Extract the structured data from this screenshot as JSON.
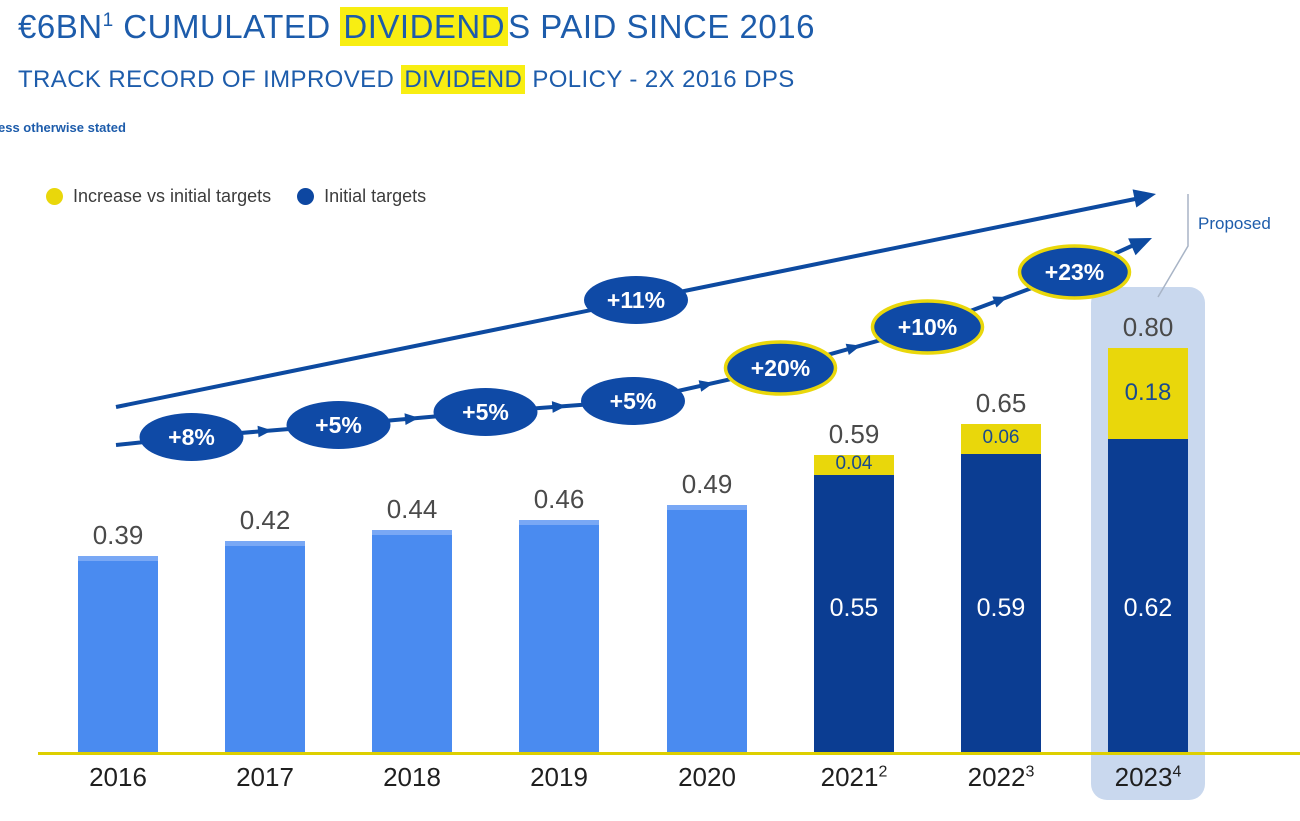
{
  "slide": {
    "title_segments": [
      {
        "text": "€6BN",
        "sup": "1",
        "highlight": false
      },
      {
        "text": " CUMULATED ",
        "highlight": false
      },
      {
        "text": "DIVIDEND",
        "highlight": true
      },
      {
        "text": "S PAID SINCE 2016",
        "highlight": false
      }
    ],
    "subtitle_segments": [
      {
        "text": "TRACK RECORD OF IMPROVED ",
        "highlight": false
      },
      {
        "text": "DIVIDEND",
        "highlight": true
      },
      {
        "text": " POLICY - 2X 2016 DPS",
        "highlight": false
      }
    ],
    "footnote": "ess otherwise stated",
    "proposed_label": "Proposed"
  },
  "legend": {
    "items": [
      {
        "label": "Increase vs initial targets",
        "color": "#e9d70b"
      },
      {
        "label": "Initial targets",
        "color": "#0d47a1"
      }
    ]
  },
  "colors": {
    "title_blue": "#1d5cab",
    "highlight_yellow": "#f8ee12",
    "light_bar": "#4a8bf0",
    "light_bar_cap": "#79a8f5",
    "dark_bar": "#0b3d92",
    "increase_yellow": "#e9d70b",
    "oval_blue": "#0f4aa6",
    "arrow_blue": "#0d4aa0",
    "baseline_yellow": "#ddcf00",
    "proposed_box": "#c9d8ee",
    "value_gray": "#4a4a4a"
  },
  "chart_data": {
    "type": "bar",
    "stacked": true,
    "categories": [
      "2016",
      "2017",
      "2018",
      "2019",
      "2020",
      "2021",
      "2022",
      "2023"
    ],
    "category_superscripts": [
      "",
      "",
      "",
      "",
      "",
      "2",
      "3",
      "4"
    ],
    "series": [
      {
        "name": "Initial targets",
        "values": [
          0.39,
          0.42,
          0.44,
          0.46,
          0.49,
          0.55,
          0.59,
          0.62
        ]
      },
      {
        "name": "Increase vs initial targets",
        "values": [
          0,
          0,
          0,
          0,
          0,
          0.04,
          0.06,
          0.18
        ]
      }
    ],
    "totals": [
      0.39,
      0.42,
      0.44,
      0.46,
      0.49,
      0.59,
      0.65,
      0.8
    ],
    "total_labels": [
      "0.39",
      "0.42",
      "0.44",
      "0.46",
      "0.49",
      "0.59",
      "0.65",
      "0.80"
    ],
    "inside_labels": [
      "",
      "",
      "",
      "",
      "",
      "0.55",
      "0.59",
      "0.62"
    ],
    "increase_labels": [
      "",
      "",
      "",
      "",
      "",
      "0.04",
      "0.06",
      "0.18"
    ],
    "bar_style": [
      "light",
      "light",
      "light",
      "light",
      "light",
      "dark",
      "dark",
      "dark"
    ],
    "highlighted_category": "2023",
    "ylim": [
      0,
      0.9
    ],
    "grid": false,
    "legend_position": "top-left",
    "growth_markers": [
      {
        "label": "+8%",
        "between": [
          "2016",
          "2017"
        ],
        "emphasis": false
      },
      {
        "label": "+5%",
        "between": [
          "2017",
          "2018"
        ],
        "emphasis": false
      },
      {
        "label": "+5%",
        "between": [
          "2018",
          "2019"
        ],
        "emphasis": false
      },
      {
        "label": "+5%",
        "between": [
          "2019",
          "2020"
        ],
        "emphasis": false
      },
      {
        "label": "+20%",
        "between": [
          "2020",
          "2021"
        ],
        "emphasis": true
      },
      {
        "label": "+10%",
        "between": [
          "2021",
          "2022"
        ],
        "emphasis": true
      },
      {
        "label": "+23%",
        "between": [
          "2022",
          "2023"
        ],
        "emphasis": true
      }
    ],
    "upper_trend_marker": {
      "label": "+11%"
    }
  }
}
